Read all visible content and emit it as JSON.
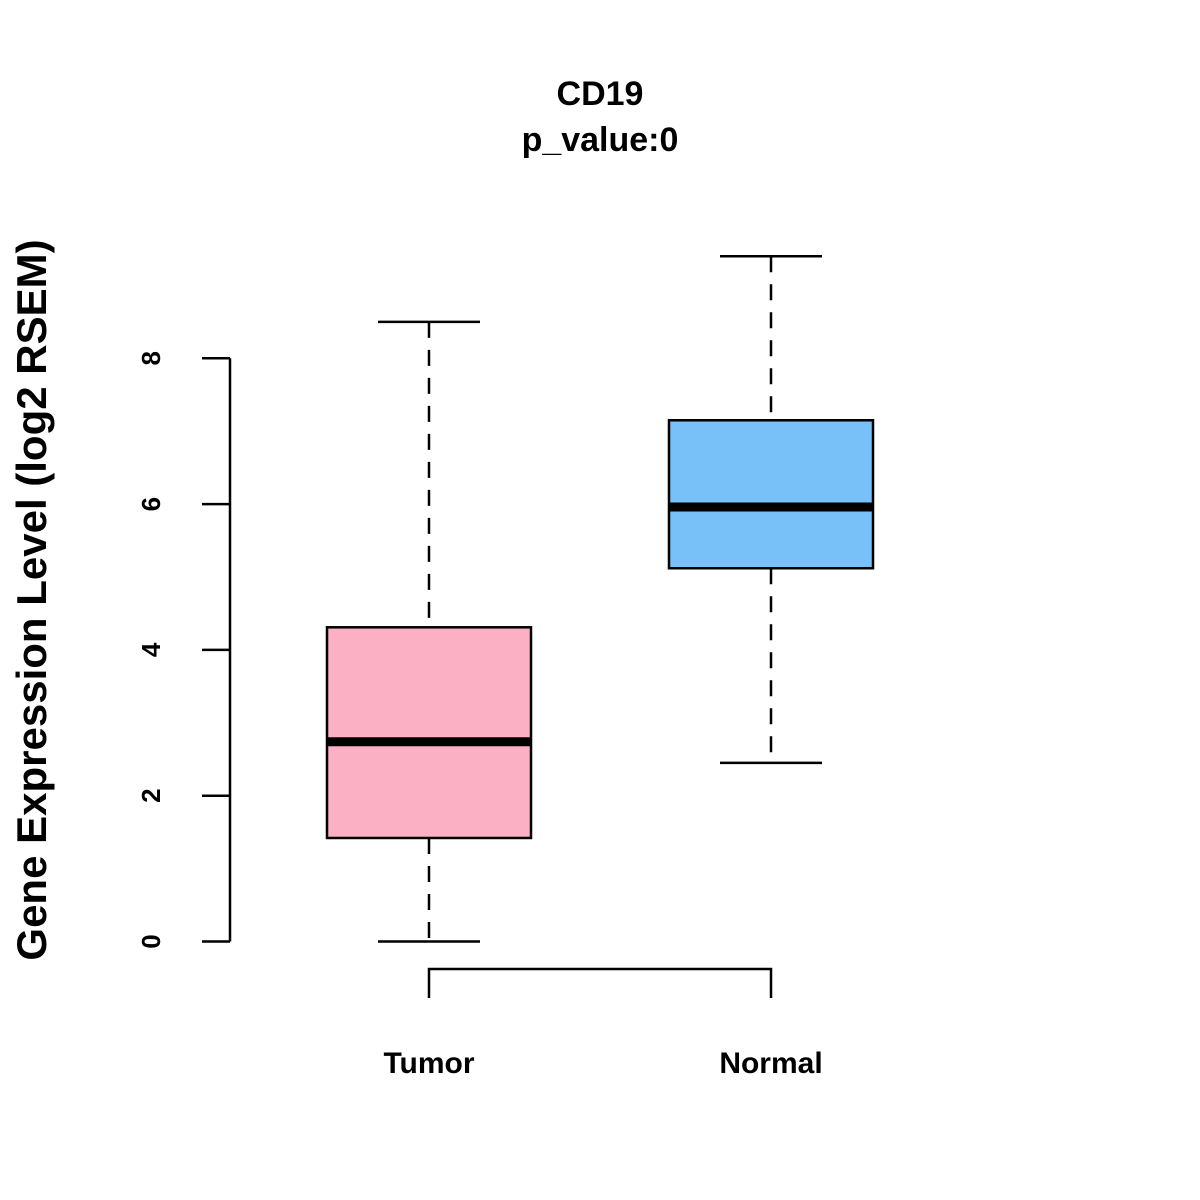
{
  "chart_data": {
    "type": "boxplot",
    "title": "CD19",
    "subtitle": "p_value:0",
    "xlabel": "",
    "ylabel": "Gene Expression Level (log2 RSEM)",
    "ylim": [
      0,
      8
    ],
    "yticks": [
      "0",
      "2",
      "4",
      "6",
      "8"
    ],
    "categories": [
      "Tumor",
      "Normal"
    ],
    "series": [
      {
        "name": "Tumor",
        "color": "#FBB1C3",
        "whisker_low": 0.0,
        "q1": 1.42,
        "median": 2.74,
        "q3": 4.31,
        "whisker_high": 8.5
      },
      {
        "name": "Normal",
        "color": "#77C1F8",
        "whisker_low": 2.45,
        "q1": 5.12,
        "median": 5.96,
        "q3": 7.15,
        "whisker_high": 9.4
      }
    ],
    "comparison_bracket": [
      "Tumor",
      "Normal"
    ],
    "grid": false,
    "legend": "none"
  }
}
